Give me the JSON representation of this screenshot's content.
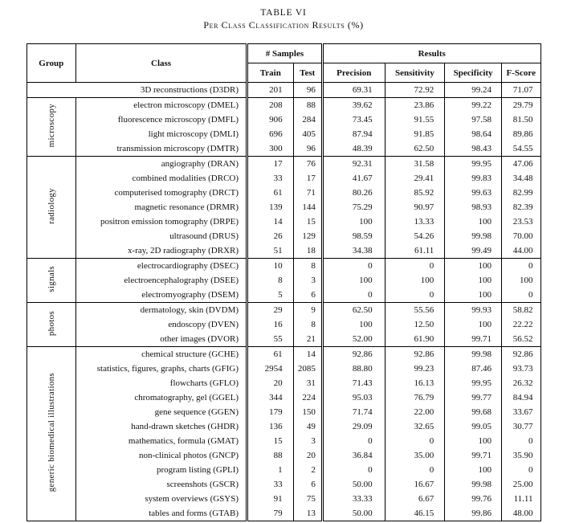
{
  "caption": {
    "title": "TABLE VI",
    "subtitle": "Per Class Classification Results (%)"
  },
  "headers": {
    "group": "Group",
    "class": "Class",
    "samples": "# Samples",
    "results": "Results",
    "train": "Train",
    "test": "Test",
    "precision": "Precision",
    "sensitivity": "Sensitivity",
    "specificity": "Specificity",
    "fscore": "F-Score"
  },
  "groups": [
    {
      "group": "",
      "rows": [
        {
          "class": "3D reconstructions (D3DR)",
          "train": "201",
          "test": "96",
          "precision": "69.31",
          "sensitivity": "72.92",
          "specificity": "99.24",
          "fscore": "71.07"
        }
      ]
    },
    {
      "group": "microscopy",
      "rows": [
        {
          "class": "electron microscopy (DMEL)",
          "train": "208",
          "test": "88",
          "precision": "39.62",
          "sensitivity": "23.86",
          "specificity": "99.22",
          "fscore": "29.79"
        },
        {
          "class": "fluorescence microscopy (DMFL)",
          "train": "906",
          "test": "284",
          "precision": "73.45",
          "sensitivity": "91.55",
          "specificity": "97.58",
          "fscore": "81.50"
        },
        {
          "class": "light microscopy (DMLI)",
          "train": "696",
          "test": "405",
          "precision": "87.94",
          "sensitivity": "91.85",
          "specificity": "98.64",
          "fscore": "89.86"
        },
        {
          "class": "transmission microscopy (DMTR)",
          "train": "300",
          "test": "96",
          "precision": "48.39",
          "sensitivity": "62.50",
          "specificity": "98.43",
          "fscore": "54.55"
        }
      ]
    },
    {
      "group": "radiology",
      "rows": [
        {
          "class": "angiography (DRAN)",
          "train": "17",
          "test": "76",
          "precision": "92.31",
          "sensitivity": "31.58",
          "specificity": "99.95",
          "fscore": "47.06"
        },
        {
          "class": "combined modalities (DRCO)",
          "train": "33",
          "test": "17",
          "precision": "41.67",
          "sensitivity": "29.41",
          "specificity": "99.83",
          "fscore": "34.48"
        },
        {
          "class": "computerised tomography (DRCT)",
          "train": "61",
          "test": "71",
          "precision": "80.26",
          "sensitivity": "85.92",
          "specificity": "99.63",
          "fscore": "82.99"
        },
        {
          "class": "magnetic resonance (DRMR)",
          "train": "139",
          "test": "144",
          "precision": "75.29",
          "sensitivity": "90.97",
          "specificity": "98.93",
          "fscore": "82.39"
        },
        {
          "class": "positron emission tomography (DRPE)",
          "train": "14",
          "test": "15",
          "precision": "100",
          "sensitivity": "13.33",
          "specificity": "100",
          "fscore": "23.53"
        },
        {
          "class": "ultrasound (DRUS)",
          "train": "26",
          "test": "129",
          "precision": "98.59",
          "sensitivity": "54.26",
          "specificity": "99.98",
          "fscore": "70.00"
        },
        {
          "class": "x-ray, 2D radiography (DRXR)",
          "train": "51",
          "test": "18",
          "precision": "34.38",
          "sensitivity": "61.11",
          "specificity": "99.49",
          "fscore": "44.00"
        }
      ]
    },
    {
      "group": "signals",
      "rows": [
        {
          "class": "electrocardiography (DSEC)",
          "train": "10",
          "test": "8",
          "precision": "0",
          "sensitivity": "0",
          "specificity": "100",
          "fscore": "0"
        },
        {
          "class": "electroencephalography (DSEE)",
          "train": "8",
          "test": "3",
          "precision": "100",
          "sensitivity": "100",
          "specificity": "100",
          "fscore": "100"
        },
        {
          "class": "electromyography (DSEM)",
          "train": "5",
          "test": "6",
          "precision": "0",
          "sensitivity": "0",
          "specificity": "100",
          "fscore": "0"
        }
      ]
    },
    {
      "group": "photos",
      "rows": [
        {
          "class": "dermatology, skin (DVDM)",
          "train": "29",
          "test": "9",
          "precision": "62.50",
          "sensitivity": "55.56",
          "specificity": "99.93",
          "fscore": "58.82"
        },
        {
          "class": "endoscopy (DVEN)",
          "train": "16",
          "test": "8",
          "precision": "100",
          "sensitivity": "12.50",
          "specificity": "100",
          "fscore": "22.22"
        },
        {
          "class": "other images (DVOR)",
          "train": "55",
          "test": "21",
          "precision": "52.00",
          "sensitivity": "61.90",
          "specificity": "99.71",
          "fscore": "56.52"
        }
      ]
    },
    {
      "group": "generic biomedical illustrations",
      "rows": [
        {
          "class": "chemical structure (GCHE)",
          "train": "61",
          "test": "14",
          "precision": "92.86",
          "sensitivity": "92.86",
          "specificity": "99.98",
          "fscore": "92.86"
        },
        {
          "class": "statistics, figures, graphs, charts (GFIG)",
          "train": "2954",
          "test": "2085",
          "precision": "88.80",
          "sensitivity": "99.23",
          "specificity": "87.46",
          "fscore": "93.73"
        },
        {
          "class": "flowcharts (GFLO)",
          "train": "20",
          "test": "31",
          "precision": "71.43",
          "sensitivity": "16.13",
          "specificity": "99.95",
          "fscore": "26.32"
        },
        {
          "class": "chromatography, gel (GGEL)",
          "train": "344",
          "test": "224",
          "precision": "95.03",
          "sensitivity": "76.79",
          "specificity": "99.77",
          "fscore": "84.94"
        },
        {
          "class": "gene sequence (GGEN)",
          "train": "179",
          "test": "150",
          "precision": "71.74",
          "sensitivity": "22.00",
          "specificity": "99.68",
          "fscore": "33.67"
        },
        {
          "class": "hand-drawn sketches (GHDR)",
          "train": "136",
          "test": "49",
          "precision": "29.09",
          "sensitivity": "32.65",
          "specificity": "99.05",
          "fscore": "30.77"
        },
        {
          "class": "mathematics, formula (GMAT)",
          "train": "15",
          "test": "3",
          "precision": "0",
          "sensitivity": "0",
          "specificity": "100",
          "fscore": "0"
        },
        {
          "class": "non-clinical photos (GNCP)",
          "train": "88",
          "test": "20",
          "precision": "36.84",
          "sensitivity": "35.00",
          "specificity": "99.71",
          "fscore": "35.90"
        },
        {
          "class": "program listing (GPLI)",
          "train": "1",
          "test": "2",
          "precision": "0",
          "sensitivity": "0",
          "specificity": "100",
          "fscore": "0"
        },
        {
          "class": "screenshots (GSCR)",
          "train": "33",
          "test": "6",
          "precision": "50.00",
          "sensitivity": "16.67",
          "specificity": "99.98",
          "fscore": "25.00"
        },
        {
          "class": "system overviews (GSYS)",
          "train": "91",
          "test": "75",
          "precision": "33.33",
          "sensitivity": "6.67",
          "specificity": "99.76",
          "fscore": "11.11"
        },
        {
          "class": "tables and forms (GTAB)",
          "train": "79",
          "test": "13",
          "precision": "50.00",
          "sensitivity": "46.15",
          "specificity": "99.86",
          "fscore": "48.00"
        }
      ]
    }
  ]
}
